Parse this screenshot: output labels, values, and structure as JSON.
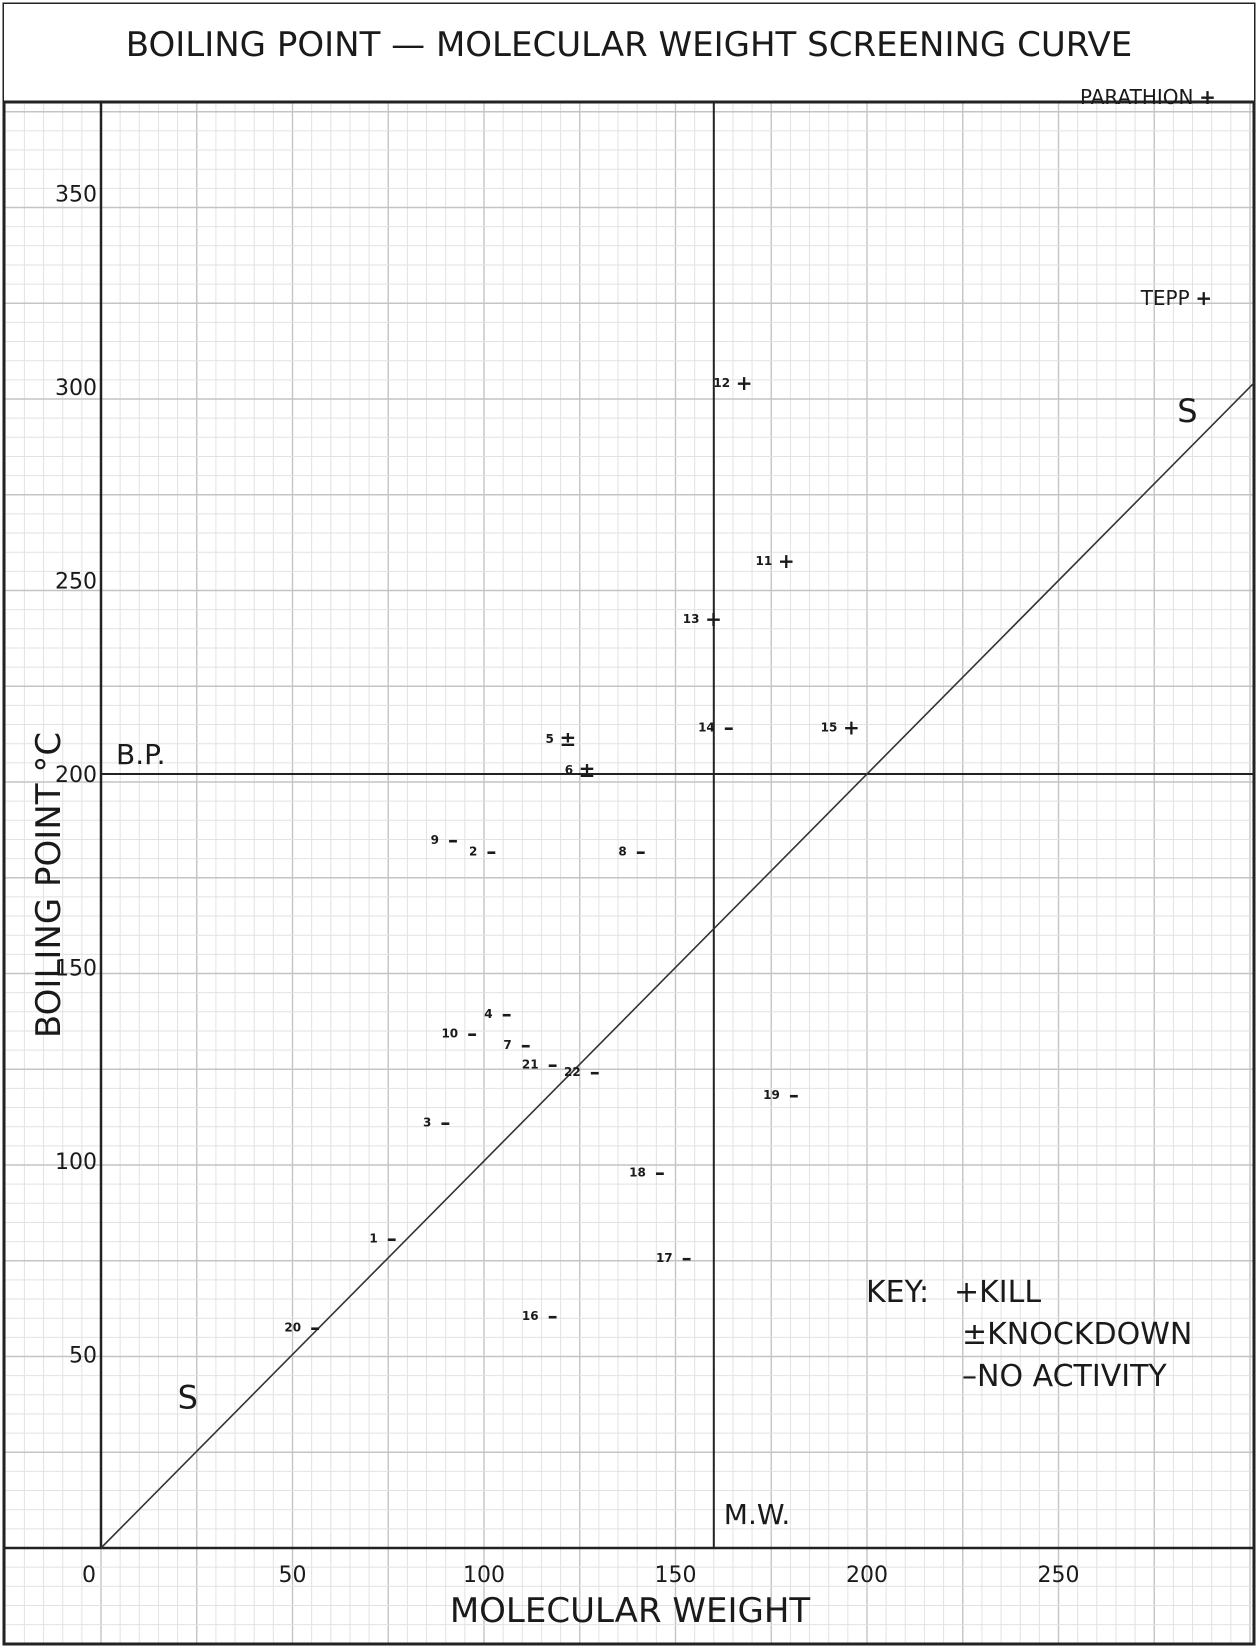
{
  "chart_data": {
    "type": "scatter",
    "title": "BOILING POINT — MOLECULAR WEIGHT  SCREENING CURVE",
    "xlabel": "MOLECULAR WEIGHT",
    "ylabel": "BOILING POINT °C",
    "xlim": [
      0,
      300
    ],
    "ylim": [
      0,
      375
    ],
    "x_ticks": [
      "0",
      "50",
      "100",
      "150",
      "200",
      "250"
    ],
    "y_ticks": [
      "50",
      "100",
      "150",
      "200",
      "250",
      "300",
      "350"
    ],
    "grid": true,
    "reference_lines": {
      "bp_label": "B.P.",
      "bp_value": 200,
      "mw_label": "M.W.",
      "mw_value": 160,
      "diagonal_label": "S",
      "diagonal_slope": 1
    },
    "key": {
      "title": "KEY:",
      "entries": [
        {
          "symbol": "+",
          "label": "KILL"
        },
        {
          "symbol": "±",
          "label": "KNOCKDOWN"
        },
        {
          "symbol": "–",
          "label": "NO ACTIVITY"
        }
      ]
    },
    "points": [
      {
        "label": "1",
        "x": 78,
        "y": 80,
        "activity": "–"
      },
      {
        "label": "2",
        "x": 104,
        "y": 180,
        "activity": "–"
      },
      {
        "label": "3",
        "x": 92,
        "y": 110,
        "activity": "–"
      },
      {
        "label": "4",
        "x": 108,
        "y": 138,
        "activity": "–"
      },
      {
        "label": "5",
        "x": 124,
        "y": 209,
        "activity": "±"
      },
      {
        "label": "6",
        "x": 129,
        "y": 201,
        "activity": "±"
      },
      {
        "label": "7",
        "x": 113,
        "y": 130,
        "activity": "–"
      },
      {
        "label": "8",
        "x": 143,
        "y": 180,
        "activity": "–"
      },
      {
        "label": "9",
        "x": 94,
        "y": 183,
        "activity": "–"
      },
      {
        "label": "10",
        "x": 99,
        "y": 133,
        "activity": "–"
      },
      {
        "label": "11",
        "x": 181,
        "y": 255,
        "activity": "+"
      },
      {
        "label": "12",
        "x": 170,
        "y": 301,
        "activity": "+"
      },
      {
        "label": "13",
        "x": 162,
        "y": 240,
        "activity": "+"
      },
      {
        "label": "14",
        "x": 166,
        "y": 212,
        "activity": "–"
      },
      {
        "label": "15",
        "x": 198,
        "y": 212,
        "activity": "+"
      },
      {
        "label": "16",
        "x": 120,
        "y": 60,
        "activity": "–"
      },
      {
        "label": "17",
        "x": 155,
        "y": 75,
        "activity": "–"
      },
      {
        "label": "18",
        "x": 148,
        "y": 97,
        "activity": "–"
      },
      {
        "label": "19",
        "x": 183,
        "y": 117,
        "activity": "–"
      },
      {
        "label": "20",
        "x": 58,
        "y": 57,
        "activity": "–"
      },
      {
        "label": "21",
        "x": 120,
        "y": 125,
        "activity": "–"
      },
      {
        "label": "22",
        "x": 131,
        "y": 123,
        "activity": "–"
      },
      {
        "label": "PARATHION",
        "x": 291,
        "y": 375,
        "activity": "+"
      },
      {
        "label": "TEPP",
        "x": 290,
        "y": 323,
        "activity": "+"
      }
    ]
  }
}
